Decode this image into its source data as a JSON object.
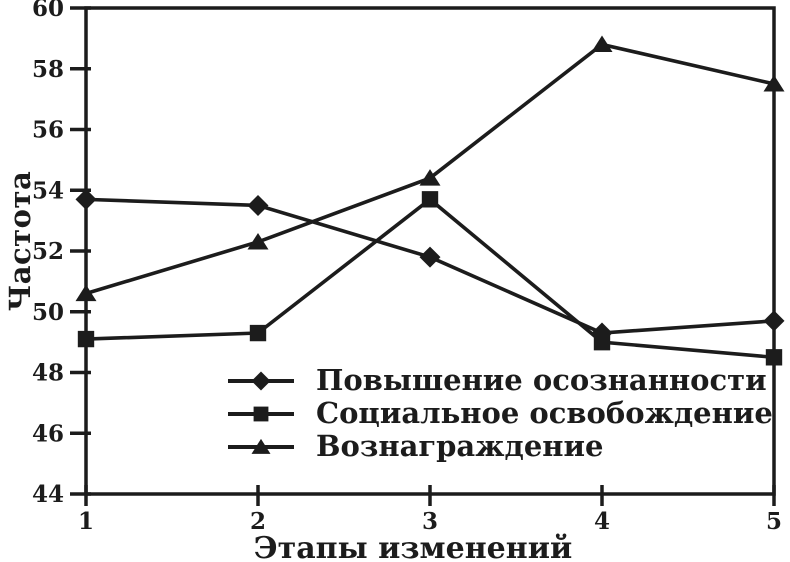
{
  "page": {
    "background": "#ffffff",
    "foreground": "#1c1c1c"
  },
  "chart_data": {
    "type": "line",
    "title": "",
    "xlabel": "Этапы изменений",
    "ylabel": "Частота",
    "x": [
      1,
      2,
      3,
      4,
      5
    ],
    "x_tick_labels": [
      "1",
      "2",
      "3",
      "4",
      "5"
    ],
    "y_ticks": [
      44,
      46,
      48,
      50,
      52,
      54,
      56,
      58,
      60
    ],
    "xlim": [
      1,
      5
    ],
    "ylim": [
      44,
      60
    ],
    "grid": false,
    "frame": "box",
    "legend_position": "inside-bottom-left",
    "line_color": "#1c1c1c",
    "series": [
      {
        "name": "Повышение осознанности",
        "marker": "diamond",
        "values": [
          53.7,
          53.5,
          51.8,
          49.3,
          49.7
        ]
      },
      {
        "name": "Социальное освобождение",
        "marker": "square",
        "values": [
          49.1,
          49.3,
          53.7,
          49.0,
          48.5
        ]
      },
      {
        "name": "Вознаграждение",
        "marker": "triangle",
        "values": [
          50.6,
          52.3,
          54.4,
          58.8,
          57.5
        ]
      }
    ]
  }
}
